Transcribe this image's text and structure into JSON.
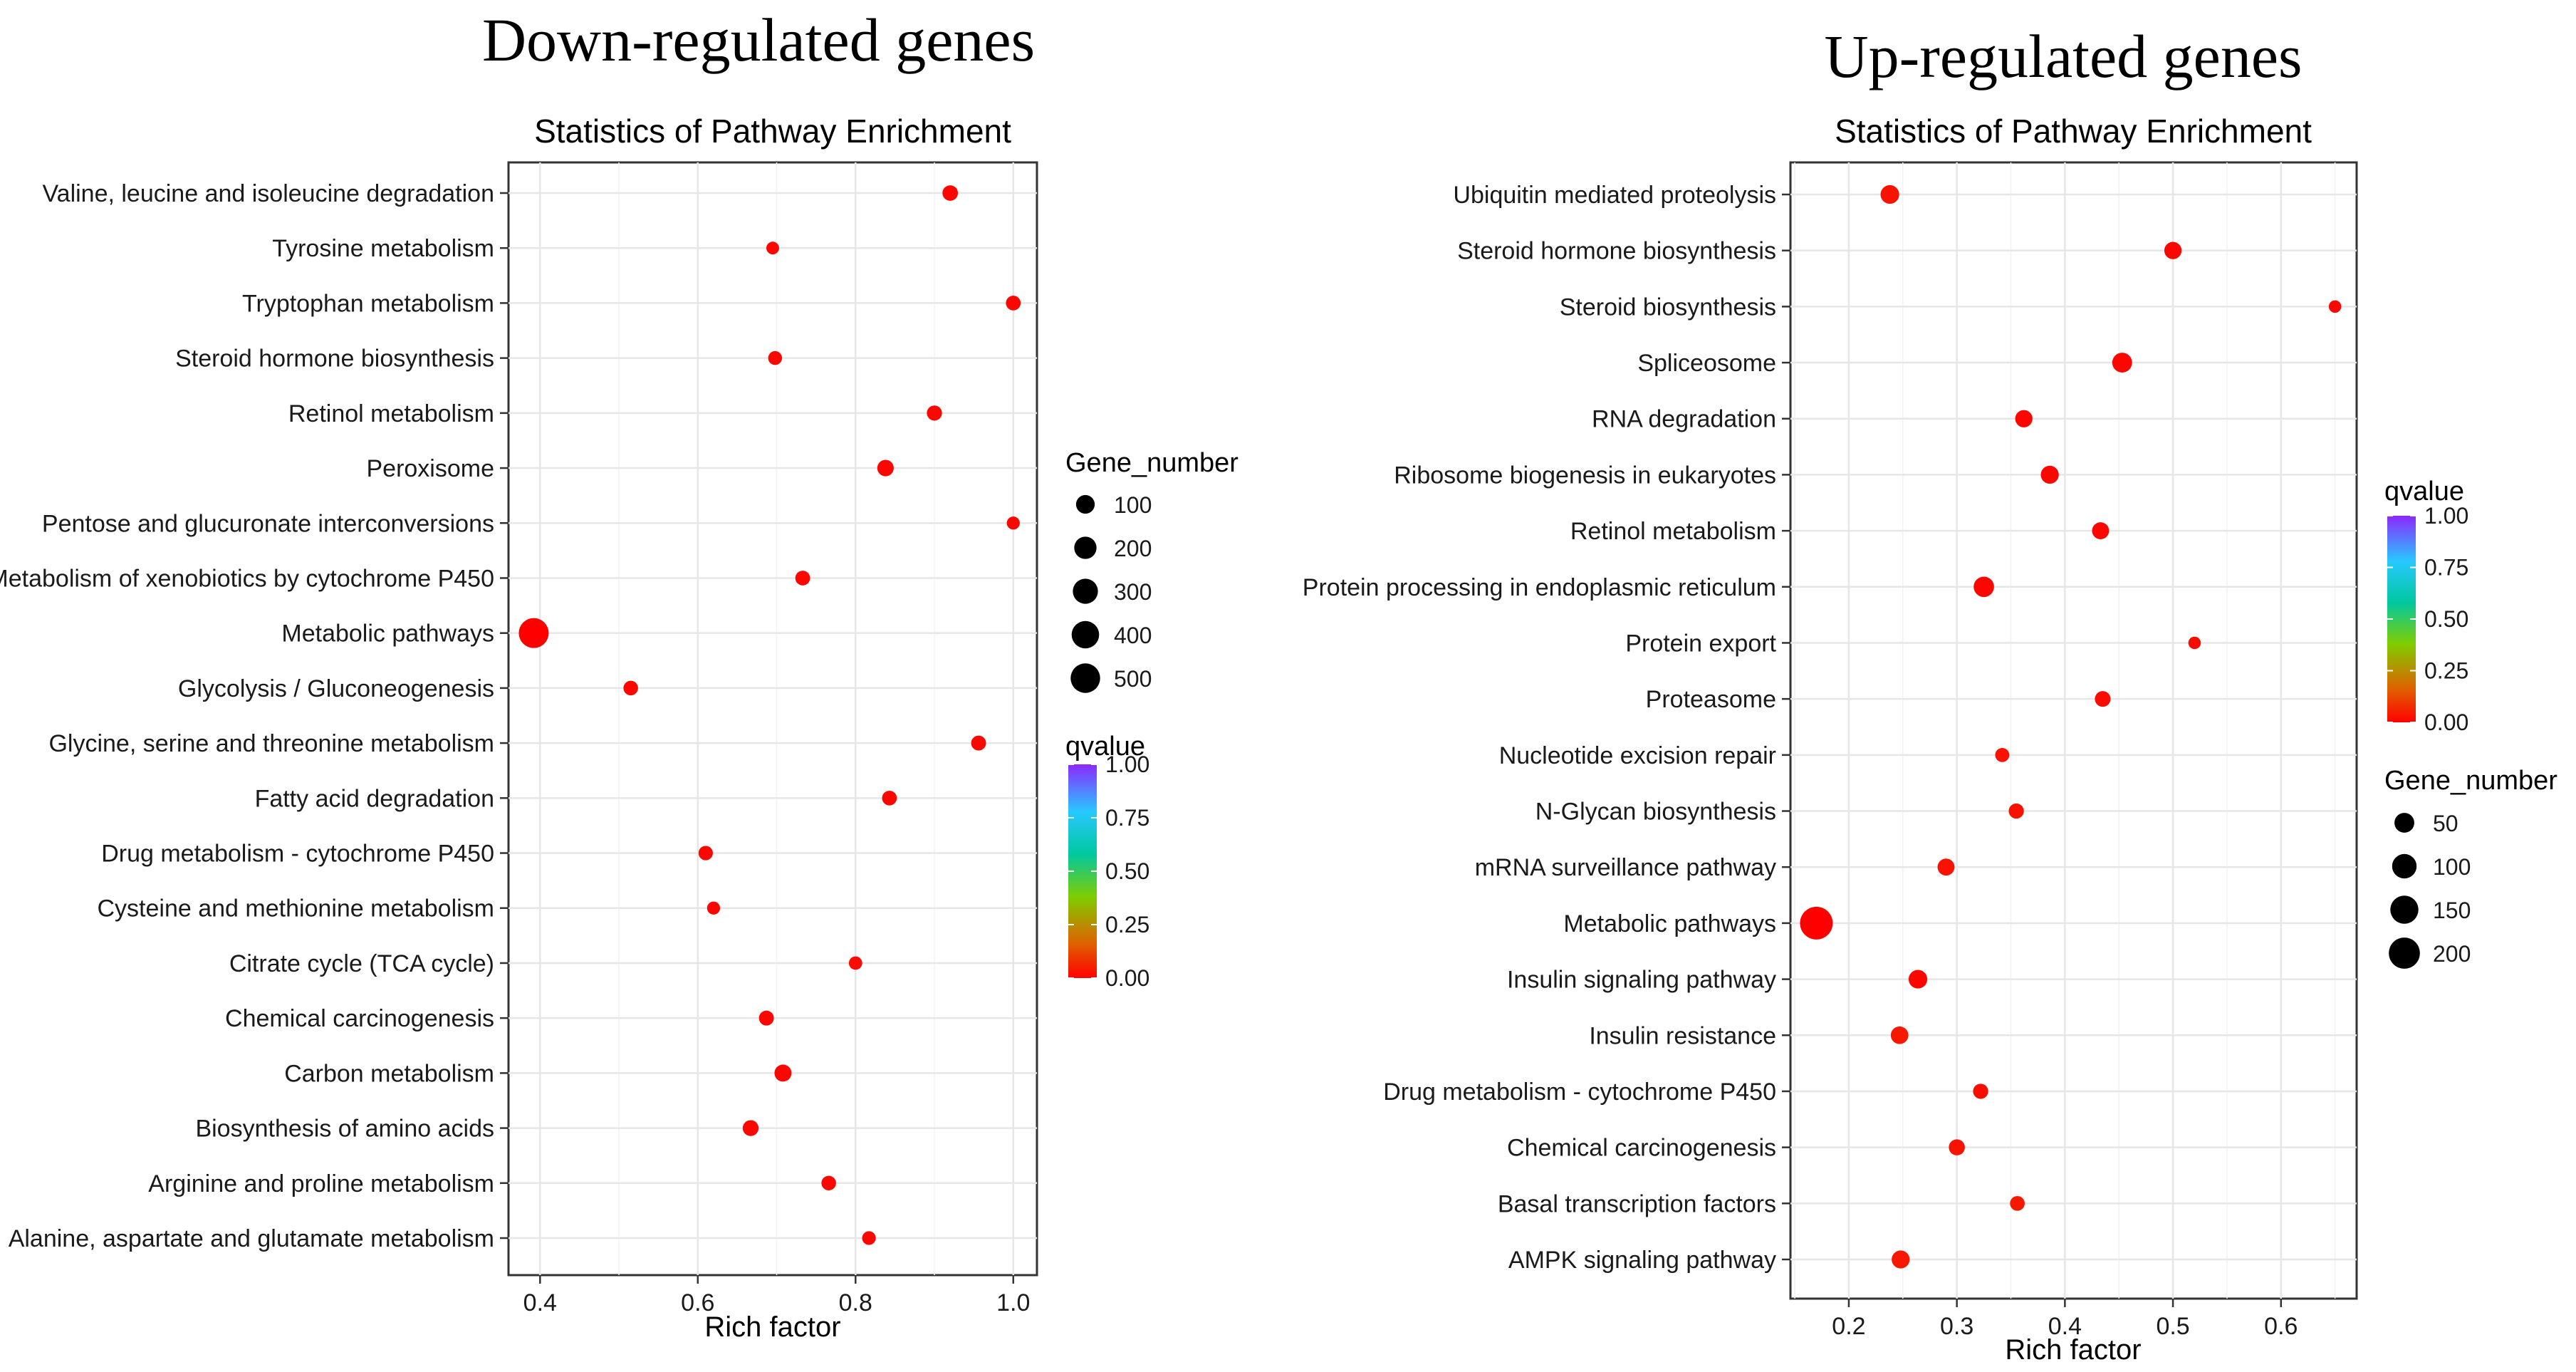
{
  "figure_titles": {
    "left": "Down-regulated genes",
    "right": "Up-regulated genes"
  },
  "chart_data": [
    {
      "type": "scatter",
      "title": "Statistics of Pathway Enrichment",
      "xlabel": "Rich factor",
      "ylabel": "",
      "xlim": [
        0.36,
        1.03
      ],
      "xticks": [
        0.4,
        0.6,
        0.8,
        1.0
      ],
      "xtick_labels": [
        "0.4",
        "0.6",
        "0.8",
        "1.0"
      ],
      "grid": true,
      "categories": [
        "Valine, leucine and isoleucine degradation",
        "Tyrosine metabolism",
        "Tryptophan metabolism",
        "Steroid hormone biosynthesis",
        "Retinol metabolism",
        "Peroxisome",
        "Pentose and glucuronate interconversions",
        "Metabolism of xenobiotics by cytochrome P450",
        "Metabolic pathways",
        "Glycolysis / Gluconeogenesis",
        "Glycine, serine and threonine metabolism",
        "Fatty acid degradation",
        "Drug metabolism - cytochrome P450",
        "Cysteine and methionine metabolism",
        "Citrate cycle (TCA cycle)",
        "Chemical carcinogenesis",
        "Carbon metabolism",
        "Biosynthesis of amino acids",
        "Arginine and proline metabolism",
        "Alanine, aspartate and glutamate metabolism"
      ],
      "rich_factor": [
        0.92,
        0.695,
        1.0,
        0.698,
        0.9,
        0.838,
        1.0,
        0.733,
        0.392,
        0.515,
        0.956,
        0.843,
        0.61,
        0.62,
        0.8,
        0.687,
        0.708,
        0.667,
        0.766,
        0.817
      ],
      "gene_number": [
        40,
        10,
        30,
        20,
        35,
        55,
        12,
        30,
        520,
        28,
        32,
        30,
        25,
        12,
        15,
        32,
        65,
        45,
        28,
        18
      ],
      "qvalue": [
        0.01,
        0.01,
        0.01,
        0.01,
        0.01,
        0.01,
        0.01,
        0.01,
        0.0,
        0.01,
        0.01,
        0.01,
        0.01,
        0.01,
        0.02,
        0.01,
        0.01,
        0.01,
        0.01,
        0.01
      ],
      "legends": {
        "order": [
          "size",
          "color"
        ],
        "size": {
          "title": "Gene_number",
          "values": [
            100,
            200,
            300,
            400,
            500
          ],
          "labels": [
            "100",
            "200",
            "300",
            "400",
            "500"
          ]
        },
        "color": {
          "title": "qvalue",
          "range": [
            0,
            1
          ],
          "ticks": [
            "1.00",
            "0.75",
            "0.50",
            "0.25",
            "0.00"
          ]
        }
      },
      "size_domain_max": 520,
      "colors": {
        "low": "#ff0000",
        "mid1": "#e06000",
        "mid2": "#7fcd00",
        "mid3": "#00c8a0",
        "mid4": "#28c8ff",
        "high": "#8c28ff"
      },
      "legend_position": "right"
    },
    {
      "type": "scatter",
      "title": "Statistics of Pathway Enrichment",
      "xlabel": "Rich factor",
      "ylabel": "",
      "xlim": [
        0.146,
        0.67
      ],
      "xticks": [
        0.2,
        0.3,
        0.4,
        0.5,
        0.6
      ],
      "xtick_labels": [
        "0.2",
        "0.3",
        "0.4",
        "0.5",
        "0.6"
      ],
      "grid": true,
      "categories": [
        "Ubiquitin mediated proteolysis",
        "Steroid hormone biosynthesis",
        "Steroid biosynthesis",
        "Spliceosome",
        "RNA degradation",
        "Ribosome biogenesis in eukaryotes",
        "Retinol metabolism",
        "Protein processing in endoplasmic reticulum",
        "Protein export",
        "Proteasome",
        "Nucleotide excision repair",
        "N-Glycan biosynthesis",
        "mRNA surveillance pathway",
        "Metabolic pathways",
        "Insulin signaling pathway",
        "Insulin resistance",
        "Drug metabolism - cytochrome P450",
        "Chemical carcinogenesis",
        "Basal transcription factors",
        "AMPK signaling pathway"
      ],
      "rich_factor": [
        0.238,
        0.5,
        0.65,
        0.453,
        0.362,
        0.386,
        0.433,
        0.325,
        0.52,
        0.435,
        0.342,
        0.355,
        0.29,
        0.17,
        0.264,
        0.247,
        0.322,
        0.3,
        0.356,
        0.248
      ],
      "gene_number": [
        40,
        30,
        6,
        50,
        30,
        35,
        28,
        55,
        6,
        20,
        12,
        17,
        28,
        230,
        40,
        32,
        17,
        22,
        15,
        35
      ],
      "qvalue": [
        0.03,
        0.01,
        0.01,
        0.01,
        0.01,
        0.01,
        0.01,
        0.01,
        0.02,
        0.02,
        0.03,
        0.03,
        0.03,
        0.0,
        0.01,
        0.04,
        0.02,
        0.03,
        0.04,
        0.04
      ],
      "legends": {
        "order": [
          "color",
          "size"
        ],
        "color": {
          "title": "qvalue",
          "range": [
            0,
            1
          ],
          "ticks": [
            "1.00",
            "0.75",
            "0.50",
            "0.25",
            "0.00"
          ]
        },
        "size": {
          "title": "Gene_number",
          "values": [
            50,
            100,
            150,
            200
          ],
          "labels": [
            "50",
            "100",
            "150",
            "200"
          ]
        }
      },
      "size_domain_max": 230,
      "colors": {
        "low": "#ff0000",
        "mid1": "#e06000",
        "mid2": "#7fcd00",
        "mid3": "#00c8a0",
        "mid4": "#28c8ff",
        "high": "#8c28ff"
      },
      "legend_position": "right"
    }
  ]
}
